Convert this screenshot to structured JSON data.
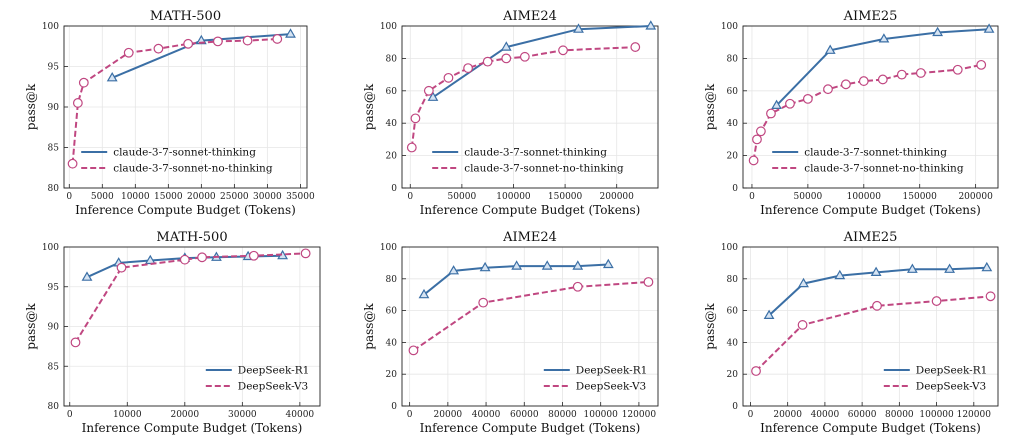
{
  "colors": {
    "series_a": "#3b6fa5",
    "series_b": "#c04781",
    "grid": "#e6e6e6"
  },
  "chart_data": [
    {
      "type": "line",
      "title": "MATH-500",
      "xlabel": "Inference Compute Budget (Tokens)",
      "ylabel": "pass@k",
      "xlim": [
        -800,
        36000
      ],
      "ylim": [
        80,
        100
      ],
      "xticks": [
        0,
        5000,
        10000,
        15000,
        20000,
        25000,
        30000,
        35000
      ],
      "yticks": [
        80,
        85,
        90,
        95,
        100
      ],
      "grid": true,
      "legend": "bottom-right",
      "series": [
        {
          "name": "claude-3-7-sonnet-thinking",
          "style": "solid",
          "marker": "triangle",
          "x": [
            6500,
            20000,
            33500
          ],
          "y": [
            93.6,
            98.2,
            99.0
          ]
        },
        {
          "name": "claude-3-7-sonnet-no-thinking",
          "style": "dashed",
          "marker": "circle",
          "x": [
            500,
            1300,
            2200,
            9000,
            13500,
            18000,
            22500,
            27000,
            31500
          ],
          "y": [
            83.0,
            90.5,
            93.0,
            96.7,
            97.2,
            97.8,
            98.1,
            98.2,
            98.4
          ]
        }
      ]
    },
    {
      "type": "line",
      "title": "AIME24",
      "xlabel": "Inference Compute Budget (Tokens)",
      "ylabel": "pass@k",
      "xlim": [
        -8000,
        240000
      ],
      "ylim": [
        0,
        100
      ],
      "xticks": [
        0,
        50000,
        100000,
        150000,
        200000
      ],
      "yticks": [
        0,
        20,
        40,
        60,
        80,
        100
      ],
      "grid": true,
      "legend": "bottom-right",
      "series": [
        {
          "name": "claude-3-7-sonnet-thinking",
          "style": "solid",
          "marker": "triangle",
          "x": [
            22000,
            93000,
            163000,
            233000
          ],
          "y": [
            56,
            87,
            98,
            100
          ]
        },
        {
          "name": "claude-3-7-sonnet-no-thinking",
          "style": "dashed",
          "marker": "circle",
          "x": [
            1500,
            5000,
            18000,
            37000,
            56000,
            75000,
            93000,
            111000,
            148000,
            218000
          ],
          "y": [
            25,
            43,
            60,
            68,
            74,
            78,
            80,
            81,
            85,
            87
          ]
        }
      ]
    },
    {
      "type": "line",
      "title": "AIME25",
      "xlabel": "Inference Compute Budget (Tokens)",
      "ylabel": "pass@k",
      "xlim": [
        -8000,
        220000
      ],
      "ylim": [
        0,
        100
      ],
      "xticks": [
        0,
        50000,
        100000,
        150000,
        200000
      ],
      "yticks": [
        0,
        20,
        40,
        60,
        80,
        100
      ],
      "grid": true,
      "legend": "bottom-right",
      "series": [
        {
          "name": "claude-3-7-sonnet-thinking",
          "style": "solid",
          "marker": "triangle",
          "x": [
            22000,
            70000,
            118000,
            166000,
            212000
          ],
          "y": [
            51,
            85,
            92,
            96,
            98
          ]
        },
        {
          "name": "claude-3-7-sonnet-no-thinking",
          "style": "dashed",
          "marker": "circle",
          "x": [
            1500,
            4500,
            8000,
            17000,
            34000,
            50000,
            68000,
            84000,
            100000,
            117000,
            134000,
            151000,
            184000,
            205000
          ],
          "y": [
            17,
            30,
            35,
            46,
            52,
            55,
            61,
            64,
            66,
            67,
            70,
            71,
            73,
            76
          ]
        }
      ]
    },
    {
      "type": "line",
      "title": "MATH-500",
      "xlabel": "Inference Compute Budget (Tokens)",
      "ylabel": "pass@k",
      "xlim": [
        -1000,
        43500
      ],
      "ylim": [
        80,
        100
      ],
      "xticks": [
        0,
        10000,
        20000,
        30000,
        40000
      ],
      "yticks": [
        80,
        85,
        90,
        95,
        100
      ],
      "grid": true,
      "legend": "bottom-right",
      "series": [
        {
          "name": "DeepSeek-R1",
          "style": "solid",
          "marker": "triangle",
          "x": [
            3000,
            8500,
            14000,
            20000,
            25500,
            31000,
            37000
          ],
          "y": [
            96.2,
            98.0,
            98.3,
            98.6,
            98.7,
            98.8,
            98.9
          ]
        },
        {
          "name": "DeepSeek-V3",
          "style": "dashed",
          "marker": "circle",
          "x": [
            1000,
            9000,
            20000,
            23000,
            32000,
            41000
          ],
          "y": [
            88.0,
            97.4,
            98.4,
            98.7,
            98.9,
            99.2
          ]
        }
      ]
    },
    {
      "type": "line",
      "title": "AIME24",
      "xlabel": "Inference Compute Budget (Tokens)",
      "ylabel": "pass@k",
      "xlim": [
        -4000,
        130000
      ],
      "ylim": [
        0,
        100
      ],
      "xticks": [
        0,
        20000,
        40000,
        60000,
        80000,
        100000,
        120000
      ],
      "yticks": [
        0,
        20,
        40,
        60,
        80,
        100
      ],
      "grid": true,
      "legend": "bottom-right",
      "series": [
        {
          "name": "DeepSeek-R1",
          "style": "solid",
          "marker": "triangle",
          "x": [
            7500,
            23000,
            39500,
            56000,
            72000,
            88000,
            104000
          ],
          "y": [
            70,
            85,
            87,
            88,
            88,
            88,
            89
          ]
        },
        {
          "name": "DeepSeek-V3",
          "style": "dashed",
          "marker": "circle",
          "x": [
            2000,
            38500,
            88000,
            125000
          ],
          "y": [
            35,
            65,
            75,
            78
          ]
        }
      ]
    },
    {
      "type": "line",
      "title": "AIME25",
      "xlabel": "Inference Compute Budget (Tokens)",
      "ylabel": "pass@k",
      "xlim": [
        -4000,
        133000
      ],
      "ylim": [
        0,
        100
      ],
      "xticks": [
        0,
        20000,
        40000,
        60000,
        80000,
        100000,
        120000
      ],
      "yticks": [
        0,
        20,
        40,
        60,
        80,
        100
      ],
      "grid": true,
      "legend": "bottom-right",
      "series": [
        {
          "name": "DeepSeek-R1",
          "style": "solid",
          "marker": "triangle",
          "x": [
            10000,
            28500,
            48000,
            67500,
            87000,
            107000,
            127000
          ],
          "y": [
            57,
            77,
            82,
            84,
            86,
            86,
            87
          ]
        },
        {
          "name": "DeepSeek-V3",
          "style": "dashed",
          "marker": "circle",
          "x": [
            3000,
            28000,
            68000,
            100000,
            129000
          ],
          "y": [
            22,
            51,
            63,
            66,
            69
          ]
        }
      ]
    }
  ]
}
